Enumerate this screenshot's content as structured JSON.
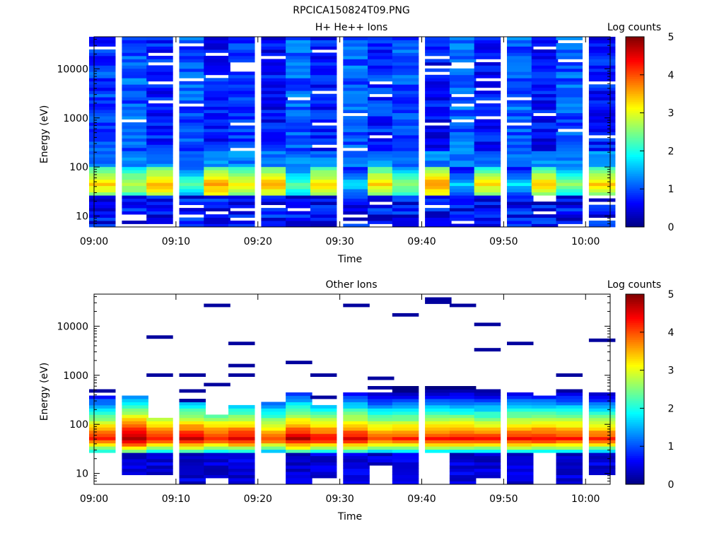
{
  "figure_title": "RPCICA150824T09.PNG",
  "colorbar": {
    "label": "Log counts",
    "range": [
      0,
      5
    ],
    "ticks": [
      "0",
      "1",
      "2",
      "3",
      "4",
      "5"
    ]
  },
  "chart_data": [
    {
      "type": "heatmap",
      "title": "H+ He++ Ions",
      "xlabel": "Time",
      "ylabel": "Energy (eV)",
      "yscale": "log",
      "ylim": [
        6,
        45000
      ],
      "xlim": [
        "09:00",
        "10:03"
      ],
      "x_ticks": [
        "09:00",
        "09:10",
        "09:20",
        "09:30",
        "09:40",
        "09:50",
        "10:00"
      ],
      "y_ticks": [
        "10",
        "100",
        "1000",
        "10000"
      ],
      "time_bins": [
        "09:01",
        "09:05",
        "09:08",
        "09:12",
        "09:15",
        "09:18",
        "09:22",
        "09:25",
        "09:28",
        "09:32",
        "09:35",
        "09:38",
        "09:42",
        "09:45",
        "09:48",
        "09:52",
        "09:55",
        "09:58",
        "10:02"
      ],
      "energy_bands": [
        {
          "range": [
            6,
            25
          ],
          "log_counts": "0.3-1.0 (blank in some bins)"
        },
        {
          "range": [
            25,
            90
          ],
          "log_counts": "2.0-3.5 peak, max near 40-50 eV"
        },
        {
          "range": [
            90,
            200
          ],
          "log_counts": "1.0-1.5"
        },
        {
          "range": [
            200,
            45000
          ],
          "log_counts": "0.2-1.3 with gaps"
        }
      ],
      "peak_log_counts": [
        3.2,
        2.8,
        3.4,
        2.2,
        3.5,
        3.0,
        3.4,
        2.2,
        3.2,
        1.6,
        3.2,
        2.5,
        3.6,
        1.5,
        3.1,
        1.6,
        3.2,
        2.4,
        3.2
      ],
      "pitch_background": [
        0.9,
        1.2,
        0.7,
        1.1,
        0.6,
        1.0,
        0.5,
        1.2,
        0.6,
        1.2,
        0.8,
        1.1,
        0.5,
        1.2,
        0.6,
        1.2,
        0.5,
        1.1,
        0.6
      ]
    },
    {
      "type": "heatmap",
      "title": "Other Ions",
      "xlabel": "Time",
      "ylabel": "Energy (eV)",
      "yscale": "log",
      "ylim": [
        6,
        45000
      ],
      "xlim": [
        "09:00",
        "10:03"
      ],
      "x_ticks": [
        "09:00",
        "09:10",
        "09:20",
        "09:30",
        "09:40",
        "09:50",
        "10:00"
      ],
      "y_ticks": [
        "10",
        "100",
        "1000",
        "10000"
      ],
      "time_bins": [
        "09:01",
        "09:05",
        "09:08",
        "09:12",
        "09:15",
        "09:18",
        "09:22",
        "09:25",
        "09:28",
        "09:32",
        "09:35",
        "09:38",
        "09:42",
        "09:45",
        "09:48",
        "09:52",
        "09:55",
        "09:58",
        "10:02"
      ],
      "energy_bands": [
        {
          "range": [
            25,
            40
          ],
          "log_counts": "1.0-2.0"
        },
        {
          "range": [
            40,
            90
          ],
          "log_counts": "3.5-5.0 peak"
        },
        {
          "range": [
            90,
            400
          ],
          "log_counts": "1.0-3.0"
        },
        {
          "range": [
            400,
            45000
          ],
          "log_counts": "sparse ~0.2"
        }
      ],
      "upper_cutoff_eV": [
        380,
        370,
        140,
        300,
        150,
        250,
        270,
        440,
        250,
        470,
        420,
        620,
        580,
        620,
        520,
        420,
        380,
        440,
        450
      ],
      "peak_log_counts": [
        4.2,
        4.8,
        4.3,
        4.5,
        4.2,
        4.4,
        4.0,
        4.6,
        4.3,
        4.4,
        4.0,
        4.1,
        4.2,
        4.2,
        4.1,
        4.3,
        4.3,
        4.2,
        4.1
      ],
      "low_cutoff_eV": [
        25,
        9,
        9,
        6,
        8,
        6,
        25,
        6,
        8,
        6,
        15,
        6,
        25,
        6,
        8,
        6,
        25,
        6,
        9
      ]
    }
  ]
}
